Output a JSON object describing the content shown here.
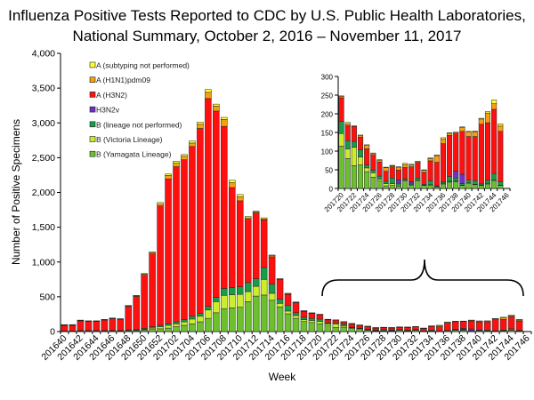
{
  "chart_data": {
    "type": "bar",
    "stacked": true,
    "title_lines": [
      "Influenza Positive Tests Reported to CDC by U.S. Public Health Laboratories,",
      "National Summary, October 2, 2016 – November 11, 2017"
    ],
    "xlabel": "Week",
    "ylabel": "Number of Positive Specimens",
    "ylim": [
      0,
      4000
    ],
    "yticks": [
      "0",
      "500",
      "1,000",
      "1,500",
      "2,000",
      "2,500",
      "3,000",
      "3,500",
      "4,000"
    ],
    "xtick_labels": [
      "201640",
      "201642",
      "201644",
      "201646",
      "201648",
      "201650",
      "201652",
      "201702",
      "201704",
      "201706",
      "201708",
      "201710",
      "201712",
      "201714",
      "201716",
      "201718",
      "201720",
      "201722",
      "201724",
      "201726",
      "201728",
      "201730",
      "201732",
      "201734",
      "201736",
      "201738",
      "201740",
      "201742",
      "201744",
      "201746"
    ],
    "legend_position": "top-left",
    "categories": [
      "201640",
      "201641",
      "201642",
      "201643",
      "201644",
      "201645",
      "201646",
      "201647",
      "201648",
      "201649",
      "201650",
      "201651",
      "201652",
      "201701",
      "201702",
      "201703",
      "201704",
      "201705",
      "201706",
      "201707",
      "201708",
      "201709",
      "201710",
      "201711",
      "201712",
      "201713",
      "201714",
      "201715",
      "201716",
      "201717",
      "201718",
      "201719",
      "201720",
      "201721",
      "201722",
      "201723",
      "201724",
      "201725",
      "201726",
      "201727",
      "201728",
      "201729",
      "201730",
      "201731",
      "201732",
      "201733",
      "201734",
      "201735",
      "201736",
      "201737",
      "201738",
      "201739",
      "201740",
      "201741",
      "201742",
      "201743",
      "201744",
      "201745"
    ],
    "series": [
      {
        "name": "B (Yamagata Lineage)",
        "color": "#6cbf2e",
        "values": [
          5,
          5,
          8,
          8,
          8,
          8,
          8,
          8,
          10,
          12,
          20,
          30,
          40,
          50,
          70,
          90,
          110,
          140,
          190,
          270,
          330,
          340,
          350,
          430,
          510,
          525,
          450,
          355,
          255,
          190,
          145,
          130,
          113,
          80,
          61,
          63,
          45,
          30,
          20,
          7,
          8,
          6,
          20,
          8,
          20,
          8,
          8,
          4,
          12,
          17,
          18,
          8,
          14,
          10,
          8,
          12,
          20,
          8
        ]
      },
      {
        "name": "B (Victoria Lineage)",
        "color": "#ccec2c",
        "values": [
          2,
          2,
          3,
          3,
          3,
          3,
          3,
          3,
          5,
          5,
          10,
          20,
          30,
          40,
          40,
          50,
          70,
          80,
          120,
          160,
          190,
          190,
          185,
          145,
          140,
          225,
          100,
          50,
          40,
          40,
          25,
          30,
          34,
          26,
          49,
          21,
          10,
          12,
          5,
          6,
          5,
          3,
          2,
          2,
          2,
          1,
          2,
          1,
          2,
          2,
          2,
          1,
          1,
          1,
          1,
          2,
          2,
          1
        ]
      },
      {
        "name": "B (lineage not performed)",
        "color": "#1b9a48",
        "values": [
          3,
          3,
          4,
          4,
          4,
          4,
          5,
          5,
          10,
          10,
          15,
          20,
          20,
          25,
          30,
          30,
          40,
          40,
          50,
          60,
          100,
          100,
          110,
          130,
          110,
          170,
          130,
          60,
          85,
          40,
          35,
          30,
          33,
          22,
          16,
          20,
          8,
          7,
          8,
          6,
          15,
          5,
          4,
          4,
          6,
          2,
          11,
          2,
          3,
          13,
          8,
          4,
          7,
          10,
          3,
          8,
          18,
          9
        ]
      },
      {
        "name": "H3N2v",
        "color": "#7030c0",
        "values": [
          0,
          0,
          0,
          0,
          0,
          0,
          0,
          0,
          0,
          0,
          0,
          0,
          0,
          0,
          0,
          0,
          0,
          0,
          0,
          0,
          0,
          0,
          0,
          0,
          0,
          0,
          0,
          0,
          0,
          0,
          0,
          0,
          0,
          0,
          0,
          0,
          0,
          0,
          0,
          0,
          0,
          9,
          0,
          4,
          0,
          0,
          0,
          0,
          0,
          0,
          18,
          25,
          0,
          0,
          0,
          0,
          0,
          0
        ]
      },
      {
        "name": "A (H3N2)",
        "color": "#ff1010",
        "values": [
          80,
          80,
          140,
          130,
          130,
          150,
          170,
          160,
          335,
          475,
          765,
          1045,
          1715,
          2080,
          2230,
          2300,
          2440,
          2660,
          2990,
          2680,
          2330,
          1440,
          1235,
          910,
          945,
          685,
          395,
          280,
          155,
          145,
          85,
          70,
          63,
          40,
          40,
          33,
          43,
          40,
          38,
          27,
          30,
          26,
          30,
          40,
          42,
          32,
          53,
          63,
          103,
          110,
          100,
          115,
          117,
          118,
          160,
          154,
          172,
          135
        ]
      },
      {
        "name": "A (H1N1)pdm09",
        "color": "#f5a010",
        "values": [
          5,
          5,
          5,
          5,
          5,
          5,
          5,
          5,
          10,
          10,
          15,
          20,
          25,
          50,
          50,
          50,
          50,
          60,
          90,
          70,
          100,
          70,
          60,
          20,
          15,
          15,
          15,
          10,
          10,
          5,
          5,
          5,
          4,
          5,
          2,
          4,
          9,
          4,
          5,
          10,
          3,
          8,
          8,
          5,
          3,
          6,
          6,
          18,
          12,
          6,
          3,
          10,
          12,
          13,
          14,
          26,
          15,
          14
        ]
      },
      {
        "name": "A (subtyping not performed)",
        "color": "#ffff30",
        "values": [
          5,
          5,
          5,
          5,
          5,
          5,
          4,
          4,
          5,
          8,
          10,
          10,
          25,
          20,
          30,
          25,
          30,
          30,
          40,
          30,
          30,
          35,
          30,
          20,
          10,
          15,
          10,
          5,
          5,
          5,
          5,
          5,
          1,
          4,
          0,
          2,
          2,
          2,
          1,
          1,
          1,
          1,
          3,
          2,
          0,
          1,
          2,
          2,
          4,
          1,
          2,
          2,
          2,
          2,
          2,
          4,
          10,
          6
        ]
      }
    ],
    "legend_order": [
      "A (subtyping not performed)",
      "A (H1N1)pdm09",
      "A (H3N2)",
      "H3N2v",
      "B (lineage not performed)",
      "B (Victoria Lineage)",
      "B (Yamagata Lineage)"
    ],
    "inset": {
      "range": [
        "201720",
        "201745"
      ],
      "ylim": [
        0,
        300
      ],
      "yticks": [
        "0",
        "50",
        "100",
        "150",
        "200",
        "250",
        "300"
      ],
      "xtick_labels": [
        "201720",
        "201722",
        "201724",
        "201726",
        "201728",
        "201730",
        "201732",
        "201734",
        "201736",
        "201738",
        "201740",
        "201742",
        "201744",
        "201746"
      ]
    }
  }
}
